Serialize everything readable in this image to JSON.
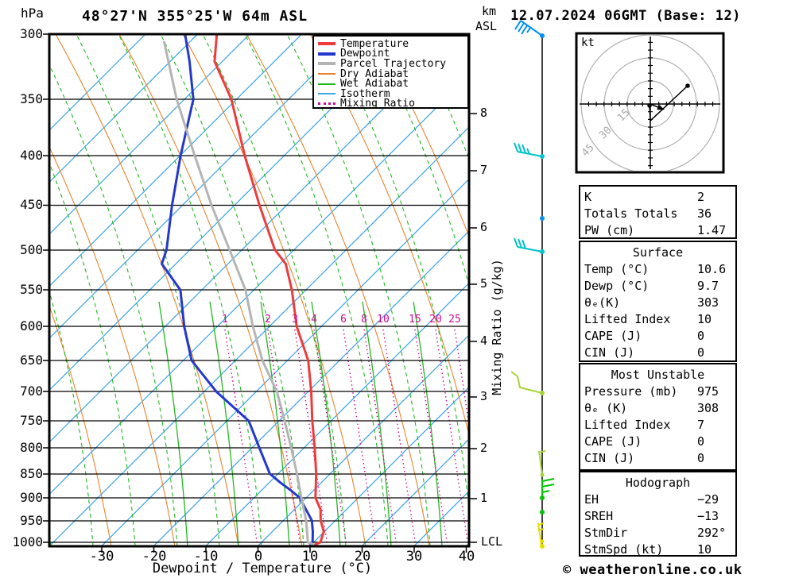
{
  "header": {
    "y_axis_unit": "hPa",
    "title": "48°27'N 355°25'W 64m ASL",
    "alt_unit_km": "km",
    "alt_unit_asl": "ASL",
    "datetime": "12.07.2024 06GMT (Base: 12)"
  },
  "legend": {
    "items": [
      {
        "label": "Temperature",
        "color": "#ef3b3b",
        "style": "solid-thick"
      },
      {
        "label": "Dewpoint",
        "color": "#2438cc",
        "style": "solid-thick"
      },
      {
        "label": "Parcel Trajectory",
        "color": "#b4b4b4",
        "style": "solid-thick"
      },
      {
        "label": "Dry Adiabat",
        "color": "#e8842e",
        "style": "solid-thin"
      },
      {
        "label": "Wet Adiabat",
        "color": "#22b822",
        "style": "solid-thin"
      },
      {
        "label": "Isotherm",
        "color": "#42a6e8",
        "style": "solid-thin"
      },
      {
        "label": "Mixing Ratio",
        "color": "#cc0a94",
        "style": "dotted"
      }
    ]
  },
  "axes": {
    "pressure_ticks": [
      "300",
      "350",
      "400",
      "450",
      "500",
      "550",
      "600",
      "650",
      "700",
      "750",
      "800",
      "850",
      "900",
      "950",
      "1000"
    ],
    "temp_ticks": [
      "-30",
      "-20",
      "-10",
      "0",
      "10",
      "20",
      "30",
      "40"
    ],
    "x_axis_title": "Dewpoint / Temperature (°C)",
    "km_ticks": [
      "8",
      "7",
      "6",
      "5",
      "4",
      "3",
      "2",
      "1"
    ],
    "lcl_label": "LCL",
    "mixing_ratio_axis_title": "Mixing Ratio (g/kg)",
    "mixing_ratio_labels": [
      "1",
      "2",
      "3",
      "4",
      "6",
      "8",
      "10",
      "15",
      "20",
      "25"
    ]
  },
  "hodograph": {
    "unit_label": "kt",
    "ring_labels": [
      "15",
      "30",
      "45"
    ]
  },
  "panels": {
    "indices": {
      "rows": [
        {
          "label": "K",
          "value": "2"
        },
        {
          "label": "Totals Totals",
          "value": "36"
        },
        {
          "label": "PW (cm)",
          "value": "1.47"
        }
      ]
    },
    "surface": {
      "title": "Surface",
      "rows": [
        {
          "label": "Temp (°C)",
          "value": "10.6"
        },
        {
          "label": "Dewp (°C)",
          "value": "9.7"
        },
        {
          "label": "θₑ(K)",
          "value": "303"
        },
        {
          "label": "Lifted Index",
          "value": "10"
        },
        {
          "label": "CAPE (J)",
          "value": "0"
        },
        {
          "label": "CIN (J)",
          "value": "0"
        }
      ]
    },
    "most_unstable": {
      "title": "Most Unstable",
      "rows": [
        {
          "label": "Pressure (mb)",
          "value": "975"
        },
        {
          "label": "θₑ (K)",
          "value": "308"
        },
        {
          "label": "Lifted Index",
          "value": "7"
        },
        {
          "label": "CAPE (J)",
          "value": "0"
        },
        {
          "label": "CIN (J)",
          "value": "0"
        }
      ]
    },
    "hodograph_stats": {
      "title": "Hodograph",
      "rows": [
        {
          "label": "EH",
          "value": "−29"
        },
        {
          "label": "SREH",
          "value": "−13"
        },
        {
          "label": "StmDir",
          "value": "292°"
        },
        {
          "label": "StmSpd (kt)",
          "value": "10"
        }
      ]
    }
  },
  "footer": {
    "credit": "© weatheronline.co.uk"
  },
  "chart_data": {
    "type": "line",
    "subtype": "skew-t-log-p-sounding",
    "title": "48°27'N 355°25'W 64m ASL",
    "datetime": "12.07.2024 06GMT (Base: 12)",
    "x_axis": {
      "label": "Dewpoint / Temperature (°C)",
      "range_at_surface": [
        -40,
        40
      ],
      "ticks": [
        -30,
        -20,
        -10,
        0,
        10,
        20,
        30,
        40
      ],
      "skew_deg": 45
    },
    "y_axis": {
      "label": "hPa",
      "scale": "log",
      "range": [
        300,
        1000
      ],
      "ticks": [
        300,
        350,
        400,
        450,
        500,
        550,
        600,
        650,
        700,
        750,
        800,
        850,
        900,
        950,
        1000
      ]
    },
    "secondary_y_axis": {
      "label": "km ASL",
      "ticks": [
        8,
        7,
        6,
        5,
        4,
        3,
        2,
        1
      ],
      "lcl_marker": "LCL",
      "lcl_pressure_hpa": 995
    },
    "mixing_ratio_lines_g_per_kg": [
      1,
      2,
      3,
      4,
      6,
      8,
      10,
      15,
      20,
      25
    ],
    "series": [
      {
        "name": "Temperature",
        "color": "#ef3b3b",
        "width": 3,
        "points": [
          {
            "p": 300,
            "t": -106.3
          },
          {
            "p": 320,
            "t": -101.5
          },
          {
            "p": 350,
            "t": -91.0
          },
          {
            "p": 400,
            "t": -77.6
          },
          {
            "p": 450,
            "t": -65.2
          },
          {
            "p": 500,
            "t": -53.7
          },
          {
            "p": 517,
            "t": -48.9
          },
          {
            "p": 550,
            "t": -42.7
          },
          {
            "p": 600,
            "t": -34.7
          },
          {
            "p": 650,
            "t": -26.0
          },
          {
            "p": 700,
            "t": -19.4
          },
          {
            "p": 750,
            "t": -13.6
          },
          {
            "p": 800,
            "t": -7.9
          },
          {
            "p": 850,
            "t": -2.7
          },
          {
            "p": 900,
            "t": 1.8
          },
          {
            "p": 925,
            "t": 5.0
          },
          {
            "p": 950,
            "t": 7.2
          },
          {
            "p": 975,
            "t": 9.9
          },
          {
            "p": 1000,
            "t": 11.3
          },
          {
            "p": 1006,
            "t": 10.6
          }
        ]
      },
      {
        "name": "Dewpoint",
        "color": "#2438cc",
        "width": 3,
        "points": [
          {
            "p": 300,
            "t": -112.4
          },
          {
            "p": 320,
            "t": -106.3
          },
          {
            "p": 350,
            "t": -98.3
          },
          {
            "p": 400,
            "t": -89.9
          },
          {
            "p": 450,
            "t": -82.0
          },
          {
            "p": 500,
            "t": -74.5
          },
          {
            "p": 517,
            "t": -72.7
          },
          {
            "p": 550,
            "t": -64.1
          },
          {
            "p": 600,
            "t": -56.3
          },
          {
            "p": 650,
            "t": -48.4
          },
          {
            "p": 700,
            "t": -37.6
          },
          {
            "p": 750,
            "t": -25.8
          },
          {
            "p": 800,
            "t": -18.5
          },
          {
            "p": 850,
            "t": -11.6
          },
          {
            "p": 868,
            "t": -7.9
          },
          {
            "p": 883,
            "t": -4.6
          },
          {
            "p": 900,
            "t": -1.2
          },
          {
            "p": 950,
            "t": 5.5
          },
          {
            "p": 975,
            "t": 7.8
          },
          {
            "p": 1000,
            "t": 9.8
          },
          {
            "p": 1006,
            "t": 9.7
          }
        ]
      },
      {
        "name": "Parcel Trajectory",
        "color": "#b4b4b4",
        "width": 3,
        "points": [
          {
            "p": 305,
            "t": -115.1
          },
          {
            "p": 350,
            "t": -101.5
          },
          {
            "p": 400,
            "t": -87.2
          },
          {
            "p": 450,
            "t": -74.4
          },
          {
            "p": 500,
            "t": -62.4
          },
          {
            "p": 550,
            "t": -51.6
          },
          {
            "p": 600,
            "t": -43.1
          },
          {
            "p": 650,
            "t": -34.8
          },
          {
            "p": 700,
            "t": -26.0
          },
          {
            "p": 750,
            "t": -18.9
          },
          {
            "p": 800,
            "t": -12.4
          },
          {
            "p": 850,
            "t": -6.4
          },
          {
            "p": 900,
            "t": -0.9
          },
          {
            "p": 950,
            "t": 4.4
          },
          {
            "p": 1000,
            "t": 8.9
          },
          {
            "p": 1006,
            "t": 10.6
          }
        ]
      }
    ],
    "wind_barbs": [
      {
        "p": 302,
        "kt": 35,
        "color": "#0090f0"
      },
      {
        "p": 401,
        "kt": 30,
        "color": "#00c2cc"
      },
      {
        "p": 464,
        "kt": 0,
        "color": "#0090f0"
      },
      {
        "p": 502,
        "kt": 30,
        "color": "#00c2cc"
      },
      {
        "p": 702,
        "kt": 10,
        "color": "#a6d437"
      },
      {
        "p": 852,
        "kt": 5,
        "color": "#a6d437"
      },
      {
        "p": 900,
        "kt": 15,
        "color": "#00c400"
      },
      {
        "p": 931,
        "kt": 0,
        "color": "#00c400"
      },
      {
        "p": 1000,
        "kt": 5,
        "color": "#e3de00"
      }
    ],
    "hodograph": {
      "rings_kt": [
        15,
        30,
        45
      ],
      "trace_kt": [
        {
          "u": -0.5,
          "v": -1.0
        },
        {
          "u": 0.0,
          "v": -10.9
        },
        {
          "u": 24.3,
          "v": 11.9
        }
      ],
      "storm_dir_deg": 292,
      "storm_spd_kt": 10
    },
    "indices": {
      "K": 2,
      "Totals_Totals": 36,
      "PW_cm": 1.47,
      "surface": {
        "temp_c": 10.6,
        "dewp_c": 9.7,
        "theta_e_k": 303,
        "lifted_index": 10,
        "cape_j": 0,
        "cin_j": 0
      },
      "most_unstable": {
        "pressure_mb": 975,
        "theta_e_k": 308,
        "lifted_index": 7,
        "cape_j": 0,
        "cin_j": 0
      },
      "hodograph": {
        "EH": -29,
        "SREH": -13,
        "StmDir_deg": 292,
        "StmSpd_kt": 10
      }
    }
  }
}
